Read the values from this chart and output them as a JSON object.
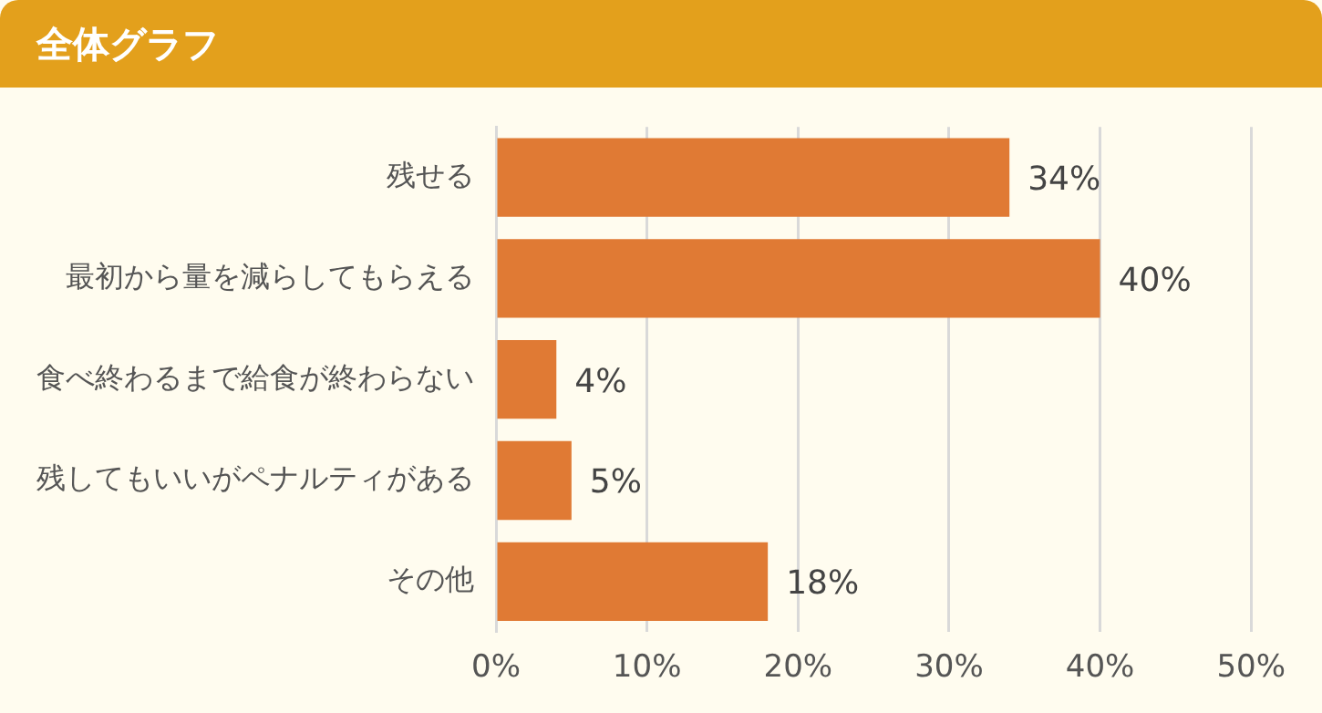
{
  "chart_data": {
    "type": "bar",
    "orientation": "horizontal",
    "title": "全体グラフ",
    "categories": [
      "残せる",
      "最初から量を減らしてもらえる",
      "食べ終わるまで給食が終わらない",
      "残してもいいがペナルティがある",
      "その他"
    ],
    "values": [
      34,
      40,
      4,
      5,
      18
    ],
    "value_labels": [
      "34%",
      "40%",
      "4%",
      "5%",
      "18%"
    ],
    "color": "#e07a34",
    "xlim": [
      0,
      50
    ],
    "xticks": [
      {
        "value": 0,
        "label": "0%"
      },
      {
        "value": 10,
        "label": "10%"
      },
      {
        "value": 20,
        "label": "20%"
      },
      {
        "value": 30,
        "label": "30%"
      },
      {
        "value": 40,
        "label": "40%"
      },
      {
        "value": 50,
        "label": "50%"
      }
    ],
    "grid": "x",
    "legend": false
  }
}
